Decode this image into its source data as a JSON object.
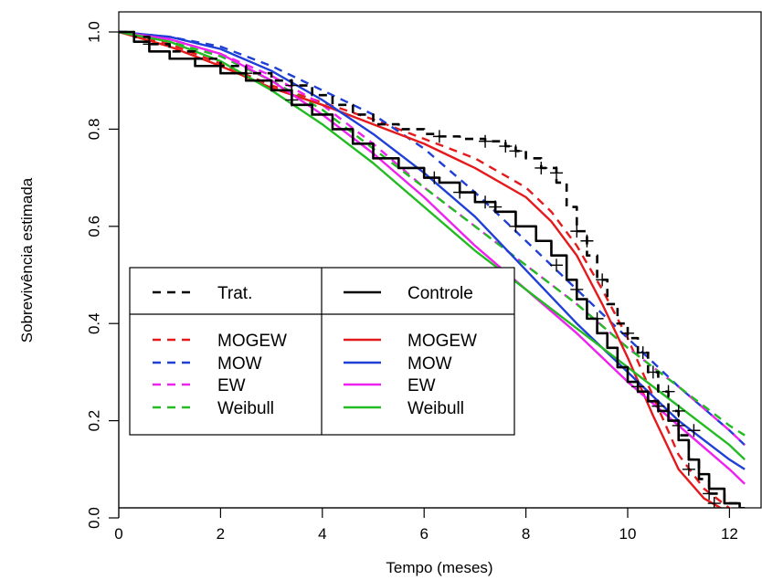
{
  "chart_data": {
    "type": "line",
    "title": "",
    "xlabel": "Tempo (meses)",
    "ylabel": "Sobrevivência estimada",
    "xlim": [
      0,
      12.3
    ],
    "ylim": [
      -0.03,
      1.05
    ],
    "xticks": [
      "0",
      "2",
      "4",
      "6",
      "8",
      "10",
      "12"
    ],
    "yticks": [
      "0.0",
      "0.2",
      "0.4",
      "0.6",
      "0.8",
      "1.0"
    ],
    "grid": false,
    "legend_position": "bottom-left",
    "legend": {
      "header_left": "Trat.",
      "header_right": "Controle",
      "models": [
        "MOGEW",
        "MOW",
        "EW",
        "Weibull"
      ],
      "colors": {
        "MOGEW": "#e41a1c",
        "MOW": "#1f3fd6",
        "EW": "#ee22ee",
        "Weibull": "#22bb22"
      }
    },
    "series": [
      {
        "name": "Trat.",
        "group": "Trat.",
        "style": "dashed",
        "kind": "km",
        "color": "#000000",
        "x": [
          0,
          0.3,
          0.6,
          1.0,
          1.5,
          2.0,
          2.5,
          3.0,
          3.4,
          3.8,
          4.2,
          4.6,
          5.0,
          5.5,
          6.0,
          6.3,
          6.7,
          7.2,
          7.6,
          7.8,
          8.0,
          8.3,
          8.6,
          8.8,
          9.0,
          9.2,
          9.4,
          9.6,
          9.8,
          10.0,
          10.2,
          10.4,
          10.6,
          10.8,
          11.0,
          11.2,
          11.4,
          11.6,
          11.9,
          12.2
        ],
        "y": [
          1.0,
          0.99,
          0.975,
          0.96,
          0.945,
          0.93,
          0.915,
          0.9,
          0.89,
          0.87,
          0.85,
          0.83,
          0.81,
          0.8,
          0.79,
          0.785,
          0.78,
          0.775,
          0.765,
          0.755,
          0.74,
          0.72,
          0.69,
          0.64,
          0.59,
          0.54,
          0.49,
          0.44,
          0.4,
          0.37,
          0.34,
          0.3,
          0.26,
          0.22,
          0.17,
          0.12,
          0.08,
          0.05,
          0.03,
          0.02
        ]
      },
      {
        "name": "Controle",
        "group": "Controle",
        "style": "solid",
        "kind": "km",
        "color": "#000000",
        "x": [
          0,
          0.3,
          0.6,
          1.0,
          1.5,
          2.0,
          2.5,
          3.0,
          3.4,
          3.8,
          4.2,
          4.6,
          5.0,
          5.5,
          6.0,
          6.3,
          6.7,
          7.0,
          7.4,
          7.8,
          8.2,
          8.5,
          8.8,
          9.0,
          9.2,
          9.4,
          9.6,
          9.8,
          10.0,
          10.2,
          10.4,
          10.6,
          10.8,
          11.0,
          11.2,
          11.4,
          11.6,
          11.9,
          12.2
        ],
        "y": [
          1.0,
          0.98,
          0.96,
          0.945,
          0.93,
          0.915,
          0.9,
          0.88,
          0.85,
          0.83,
          0.8,
          0.77,
          0.74,
          0.72,
          0.7,
          0.69,
          0.67,
          0.65,
          0.63,
          0.6,
          0.57,
          0.54,
          0.49,
          0.45,
          0.41,
          0.38,
          0.35,
          0.31,
          0.28,
          0.26,
          0.24,
          0.22,
          0.2,
          0.16,
          0.12,
          0.09,
          0.06,
          0.03,
          0.02
        ]
      },
      {
        "name": "MOGEW",
        "group": "Trat.",
        "style": "dashed",
        "kind": "fit",
        "color": "#e41a1c",
        "x": [
          0,
          1,
          2,
          3,
          4,
          5,
          6,
          7,
          8,
          8.5,
          9,
          9.5,
          10,
          10.5,
          11,
          11.5,
          12,
          12.3
        ],
        "y": [
          1.0,
          0.975,
          0.935,
          0.89,
          0.855,
          0.82,
          0.78,
          0.74,
          0.68,
          0.63,
          0.56,
          0.47,
          0.37,
          0.25,
          0.13,
          0.06,
          0.02,
          0.01
        ]
      },
      {
        "name": "MOW",
        "group": "Trat.",
        "style": "dashed",
        "kind": "fit",
        "color": "#1f3fd6",
        "x": [
          0,
          1,
          2,
          3,
          4,
          5,
          6,
          7,
          8,
          9,
          10,
          11,
          12,
          12.3
        ],
        "y": [
          1.0,
          0.99,
          0.97,
          0.93,
          0.88,
          0.83,
          0.76,
          0.67,
          0.57,
          0.47,
          0.37,
          0.27,
          0.18,
          0.15
        ]
      },
      {
        "name": "EW",
        "group": "Trat.",
        "style": "dashed",
        "kind": "fit",
        "color": "#ee22ee",
        "x": [
          0,
          1,
          2,
          3,
          4,
          5,
          6,
          7,
          8,
          9,
          10,
          11,
          12,
          12.3
        ],
        "y": [
          1.0,
          0.985,
          0.955,
          0.91,
          0.85,
          0.77,
          0.68,
          0.6,
          0.52,
          0.44,
          0.35,
          0.27,
          0.18,
          0.15
        ]
      },
      {
        "name": "Weibull",
        "group": "Trat.",
        "style": "dashed",
        "kind": "fit",
        "color": "#22bb22",
        "x": [
          0,
          1,
          2,
          3,
          4,
          5,
          6,
          7,
          8,
          9,
          10,
          11,
          12,
          12.3
        ],
        "y": [
          1.0,
          0.98,
          0.95,
          0.9,
          0.84,
          0.76,
          0.68,
          0.6,
          0.52,
          0.44,
          0.35,
          0.27,
          0.19,
          0.17
        ]
      },
      {
        "name": "MOGEW",
        "group": "Controle",
        "style": "solid",
        "kind": "fit",
        "color": "#e41a1c",
        "x": [
          0,
          1,
          2,
          3,
          4,
          5,
          6,
          7,
          8,
          8.5,
          9,
          9.5,
          10,
          10.5,
          11,
          11.5,
          12,
          12.3
        ],
        "y": [
          1.0,
          0.97,
          0.93,
          0.885,
          0.85,
          0.81,
          0.77,
          0.72,
          0.66,
          0.61,
          0.54,
          0.44,
          0.33,
          0.21,
          0.1,
          0.04,
          0.01,
          0.005
        ]
      },
      {
        "name": "MOW",
        "group": "Controle",
        "style": "solid",
        "kind": "fit",
        "color": "#1f3fd6",
        "x": [
          0,
          1,
          2,
          3,
          4,
          5,
          6,
          7,
          8,
          9,
          10,
          11,
          12,
          12.3
        ],
        "y": [
          1.0,
          0.99,
          0.965,
          0.92,
          0.86,
          0.79,
          0.71,
          0.62,
          0.51,
          0.4,
          0.3,
          0.2,
          0.12,
          0.1
        ]
      },
      {
        "name": "EW",
        "group": "Controle",
        "style": "solid",
        "kind": "fit",
        "color": "#ee22ee",
        "x": [
          0,
          1,
          2,
          3,
          4,
          5,
          6,
          7,
          8,
          9,
          10,
          11,
          12,
          12.3
        ],
        "y": [
          1.0,
          0.985,
          0.955,
          0.9,
          0.83,
          0.75,
          0.66,
          0.56,
          0.47,
          0.38,
          0.28,
          0.19,
          0.1,
          0.07
        ]
      },
      {
        "name": "Weibull",
        "group": "Controle",
        "style": "solid",
        "kind": "fit",
        "color": "#22bb22",
        "x": [
          0,
          1,
          2,
          3,
          4,
          5,
          6,
          7,
          8,
          9,
          10,
          11,
          12,
          12.3
        ],
        "y": [
          1.0,
          0.98,
          0.94,
          0.88,
          0.81,
          0.73,
          0.64,
          0.55,
          0.47,
          0.39,
          0.31,
          0.23,
          0.15,
          0.12
        ]
      }
    ],
    "censor_marks": {
      "Trat.": [
        [
          0.6,
          0.975
        ],
        [
          2.5,
          0.915
        ],
        [
          3.4,
          0.89
        ],
        [
          3.4,
          0.86
        ],
        [
          6.3,
          0.785
        ],
        [
          7.2,
          0.775
        ],
        [
          7.6,
          0.765
        ],
        [
          7.8,
          0.755
        ],
        [
          8.3,
          0.72
        ],
        [
          8.6,
          0.71
        ],
        [
          9.0,
          0.59
        ],
        [
          9.2,
          0.57
        ],
        [
          9.5,
          0.49
        ],
        [
          10.0,
          0.38
        ],
        [
          10.3,
          0.34
        ],
        [
          10.5,
          0.3
        ],
        [
          10.8,
          0.26
        ],
        [
          11.0,
          0.22
        ],
        [
          11.3,
          0.18
        ],
        [
          11.6,
          0.05
        ]
      ],
      "Controle": [
        [
          6.2,
          0.7
        ],
        [
          6.7,
          0.67
        ],
        [
          7.2,
          0.65
        ],
        [
          7.4,
          0.64
        ],
        [
          7.8,
          0.6
        ],
        [
          8.6,
          0.52
        ],
        [
          9.0,
          0.47
        ],
        [
          9.4,
          0.41
        ],
        [
          10.2,
          0.27
        ],
        [
          10.6,
          0.23
        ],
        [
          11.0,
          0.19
        ],
        [
          11.2,
          0.1
        ],
        [
          11.7,
          0.03
        ]
      ]
    }
  }
}
